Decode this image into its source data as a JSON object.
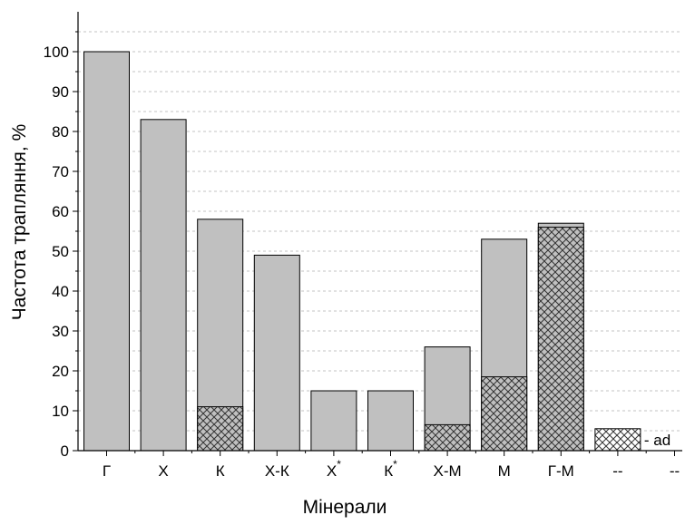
{
  "chart_data": {
    "type": "bar",
    "xlabel": "Мінерали",
    "ylabel": "Частота трапляння, %",
    "ylim": [
      0,
      110
    ],
    "yticks": [
      0,
      10,
      20,
      30,
      40,
      50,
      60,
      70,
      80,
      90,
      100
    ],
    "grid": "horizontal dashed",
    "bar_color": "#c0c0c0",
    "hatch_color": "#ffffff",
    "categories": [
      {
        "label": "Г",
        "sup": ""
      },
      {
        "label": "Х",
        "sup": ""
      },
      {
        "label": "К",
        "sup": ""
      },
      {
        "label": "Х-К",
        "sup": ""
      },
      {
        "label": "Х",
        "sup": "*"
      },
      {
        "label": "К",
        "sup": "*"
      },
      {
        "label": "Х-М",
        "sup": ""
      },
      {
        "label": "М",
        "sup": ""
      },
      {
        "label": "Г-М",
        "sup": ""
      },
      {
        "label": "--",
        "sup": ""
      },
      {
        "label": "--",
        "sup": ""
      }
    ],
    "series": [
      {
        "values": [
          100,
          83,
          58,
          49,
          15,
          15,
          26,
          53,
          57,
          0,
          0
        ]
      },
      {
        "name": "ad",
        "values": [
          0,
          0,
          11,
          0,
          0,
          0,
          6.5,
          18.5,
          56,
          5.5,
          0
        ]
      }
    ],
    "legend": {
      "text": "- ad",
      "placement": "bottom-right"
    }
  }
}
